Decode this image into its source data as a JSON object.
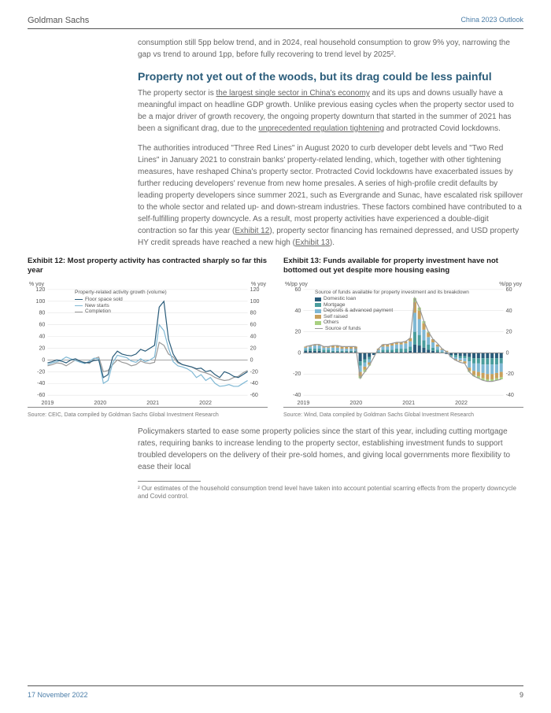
{
  "header": {
    "left": "Goldman Sachs",
    "right": "China 2023 Outlook"
  },
  "para1": "consumption still 5pp below trend, and in 2024, real household consumption to grow 9% yoy, narrowing the gap vs trend to around 1pp, before fully recovering to trend level by 2025².",
  "section_title": "Property not yet out of the woods, but its drag could be less painful",
  "para2a": "The property sector is ",
  "link2a": "the largest single sector in China's economy",
  "para2b": " and its ups and downs usually have a meaningful impact on headline GDP growth. Unlike previous easing cycles when the property sector used to be a major driver of growth recovery, the ongoing property downturn that started in the summer of 2021 has been a significant drag, due to the ",
  "link2b": "unprecedented regulation tightening",
  "para2c": " and protracted Covid lockdowns.",
  "para3a": "The authorities introduced \"Three Red Lines\" in August 2020 to curb developer debt levels and \"Two Red Lines\" in January 2021 to constrain banks' property-related lending, which, together with other tightening measures, have reshaped China's property sector. Protracted Covid lockdowns have exacerbated issues by further reducing developers' revenue from new home presales. A series of high-profile credit defaults by leading property developers since summer 2021, such as Evergrande and Sunac, have escalated risk spillover to the whole sector and related up- and down-stream industries. These factors combined have contributed to a self-fulfilling property downcycle. As a result, most property activities have experienced a double-digit contraction so far this year (",
  "link3a": "Exhibit 12",
  "para3b": "), property sector financing has remained depressed, and USD property HY credit spreads have reached a new high (",
  "link3b": "Exhibit 13",
  "para3c": ").",
  "exhibit12": {
    "title": "Exhibit 12: Most property activity has contracted sharply so far this year",
    "ylabel": "% yoy",
    "legend_title": "Property-related activity growth (volume)",
    "legend": [
      {
        "label": "Floor space sold",
        "color": "#2a5c7a"
      },
      {
        "label": "New starts",
        "color": "#7fb8d4"
      },
      {
        "label": "Completion",
        "color": "#999"
      }
    ],
    "ylim": [
      -60,
      120
    ],
    "ystep": 20,
    "xlabels": [
      "2019",
      "2020",
      "2021",
      "2022"
    ],
    "series": {
      "floor_sold": [
        -5,
        -3,
        0,
        -2,
        -5,
        0,
        2,
        -2,
        -5,
        -4,
        -1,
        0,
        -30,
        -25,
        5,
        15,
        10,
        8,
        7,
        10,
        18,
        15,
        20,
        25,
        90,
        100,
        35,
        10,
        -3,
        -8,
        -10,
        -12,
        -15,
        -14,
        -20,
        -18,
        -25,
        -30,
        -20,
        -23,
        -28,
        -30,
        -25,
        -20
      ],
      "new_starts": [
        -8,
        -5,
        -3,
        0,
        5,
        2,
        -1,
        -4,
        -6,
        -2,
        3,
        2,
        -40,
        -35,
        -5,
        8,
        6,
        4,
        -2,
        -4,
        2,
        -3,
        0,
        5,
        60,
        50,
        20,
        -3,
        -10,
        -12,
        -15,
        -20,
        -30,
        -25,
        -35,
        -30,
        -40,
        -45,
        -44,
        -42,
        -45,
        -45,
        -40,
        -35
      ],
      "completion": [
        -10,
        -8,
        -5,
        -6,
        -10,
        -5,
        0,
        -3,
        -4,
        -6,
        2,
        5,
        -20,
        -18,
        -8,
        0,
        -4,
        -6,
        -10,
        -8,
        -2,
        -5,
        -6,
        -4,
        30,
        25,
        10,
        5,
        -5,
        -8,
        -10,
        -12,
        -16,
        -20,
        -22,
        -25,
        -30,
        -33,
        -35,
        -34,
        -30,
        -28,
        -22,
        -18
      ]
    },
    "source": "Source: CEIC, Data compiled by Goldman Sachs Global Investment Research"
  },
  "exhibit13": {
    "title": "Exhibit 13: Funds available for property investment have not bottomed out yet despite more housing easing",
    "ylabel": "%/pp yoy",
    "legend_title": "Source of funds available for property investment and its breakdown",
    "legend": [
      {
        "label": "Domestic loan",
        "color": "#2a5c7a"
      },
      {
        "label": "Mortgage",
        "color": "#4a9d9d"
      },
      {
        "label": "Deposits & advanced payment",
        "color": "#7fb8d4"
      },
      {
        "label": "Self raised",
        "color": "#c8a05c"
      },
      {
        "label": "Others",
        "color": "#a8d080"
      },
      {
        "label": "Source of funds",
        "color": "#999"
      }
    ],
    "ylim": [
      -40,
      60
    ],
    "ystep": 20,
    "xlabels": [
      "2019",
      "2020",
      "2021",
      "2022"
    ],
    "stacks": [
      {
        "dl": 2,
        "mg": 1,
        "dp": 2,
        "sr": 1,
        "ot": 0
      },
      {
        "dl": 2,
        "mg": 2,
        "dp": 2,
        "sr": 1,
        "ot": 0
      },
      {
        "dl": 2,
        "mg": 2,
        "dp": 3,
        "sr": 1,
        "ot": 0
      },
      {
        "dl": 2,
        "mg": 2,
        "dp": 3,
        "sr": 1,
        "ot": 0
      },
      {
        "dl": 1,
        "mg": 2,
        "dp": 2,
        "sr": 1,
        "ot": 0
      },
      {
        "dl": 1,
        "mg": 2,
        "dp": 2,
        "sr": 1,
        "ot": 0
      },
      {
        "dl": 1,
        "mg": 1,
        "dp": 3,
        "sr": 2,
        "ot": 0
      },
      {
        "dl": 1,
        "mg": 1,
        "dp": 3,
        "sr": 2,
        "ot": 0
      },
      {
        "dl": 1,
        "mg": 1,
        "dp": 2,
        "sr": 2,
        "ot": 0
      },
      {
        "dl": 1,
        "mg": 1,
        "dp": 2,
        "sr": 2,
        "ot": 0
      },
      {
        "dl": 1,
        "mg": 1,
        "dp": 2,
        "sr": 2,
        "ot": 0
      },
      {
        "dl": 1,
        "mg": 1,
        "dp": 2,
        "sr": 2,
        "ot": 0
      },
      {
        "dl": -8,
        "mg": -4,
        "dp": -6,
        "sr": -4,
        "ot": -2
      },
      {
        "dl": -6,
        "mg": -3,
        "dp": -4,
        "sr": -3,
        "ot": -2
      },
      {
        "dl": -4,
        "mg": -2,
        "dp": -3,
        "sr": -2,
        "ot": -1
      },
      {
        "dl": -2,
        "mg": 0,
        "dp": 0,
        "sr": 0,
        "ot": 0
      },
      {
        "dl": 0,
        "mg": 1,
        "dp": 2,
        "sr": 1,
        "ot": 0
      },
      {
        "dl": 1,
        "mg": 2,
        "dp": 3,
        "sr": 2,
        "ot": 0
      },
      {
        "dl": 1,
        "mg": 2,
        "dp": 3,
        "sr": 2,
        "ot": 0
      },
      {
        "dl": 1,
        "mg": 2,
        "dp": 4,
        "sr": 2,
        "ot": 0
      },
      {
        "dl": 1,
        "mg": 3,
        "dp": 4,
        "sr": 2,
        "ot": 0
      },
      {
        "dl": 1,
        "mg": 3,
        "dp": 4,
        "sr": 2,
        "ot": 0
      },
      {
        "dl": 1,
        "mg": 3,
        "dp": 5,
        "sr": 2,
        "ot": 0
      },
      {
        "dl": 2,
        "mg": 4,
        "dp": 5,
        "sr": 3,
        "ot": 0
      },
      {
        "dl": 8,
        "mg": 12,
        "dp": 18,
        "sr": 10,
        "ot": 4
      },
      {
        "dl": 7,
        "mg": 10,
        "dp": 15,
        "sr": 8,
        "ot": 3
      },
      {
        "dl": 5,
        "mg": 7,
        "dp": 10,
        "sr": 6,
        "ot": 2
      },
      {
        "dl": 3,
        "mg": 5,
        "dp": 7,
        "sr": 4,
        "ot": 1
      },
      {
        "dl": 2,
        "mg": 3,
        "dp": 5,
        "sr": 3,
        "ot": 0
      },
      {
        "dl": 1,
        "mg": 2,
        "dp": 3,
        "sr": 2,
        "ot": 0
      },
      {
        "dl": 0,
        "mg": 1,
        "dp": 2,
        "sr": 1,
        "ot": 0
      },
      {
        "dl": -1,
        "mg": 0,
        "dp": 1,
        "sr": 1,
        "ot": 0
      },
      {
        "dl": -2,
        "mg": -1,
        "dp": -1,
        "sr": 0,
        "ot": 0
      },
      {
        "dl": -2,
        "mg": -2,
        "dp": -2,
        "sr": -1,
        "ot": 0
      },
      {
        "dl": -3,
        "mg": -2,
        "dp": -2,
        "sr": -1,
        "ot": 0
      },
      {
        "dl": -3,
        "mg": -2,
        "dp": -3,
        "sr": -2,
        "ot": 0
      },
      {
        "dl": -4,
        "mg": -4,
        "dp": -6,
        "sr": -3,
        "ot": -1
      },
      {
        "dl": -5,
        "mg": -5,
        "dp": -7,
        "sr": -4,
        "ot": -1
      },
      {
        "dl": -5,
        "mg": -5,
        "dp": -8,
        "sr": -4,
        "ot": -2
      },
      {
        "dl": -5,
        "mg": -6,
        "dp": -8,
        "sr": -5,
        "ot": -2
      },
      {
        "dl": -5,
        "mg": -6,
        "dp": -9,
        "sr": -5,
        "ot": -2
      },
      {
        "dl": -5,
        "mg": -6,
        "dp": -9,
        "sr": -5,
        "ot": -2
      },
      {
        "dl": -5,
        "mg": -6,
        "dp": -8,
        "sr": -5,
        "ot": -2
      },
      {
        "dl": -5,
        "mg": -5,
        "dp": -8,
        "sr": -5,
        "ot": -2
      }
    ],
    "line": [
      6,
      7,
      8,
      8,
      6,
      6,
      7,
      7,
      6,
      6,
      6,
      6,
      -24,
      -18,
      -12,
      -4,
      4,
      8,
      8,
      9,
      10,
      10,
      11,
      14,
      52,
      43,
      30,
      20,
      13,
      9,
      4,
      1,
      -4,
      -7,
      -9,
      -10,
      -18,
      -22,
      -24,
      -26,
      -27,
      -27,
      -26,
      -25
    ],
    "source": "Source: Wind, Data compiled by Goldman Sachs Global Investment Research"
  },
  "para4": "Policymakers started to ease some property policies since the start of this year, including cutting mortgage rates, requiring banks to increase lending to the property sector, establishing investment funds to support troubled developers on the delivery of their pre-sold homes, and giving local governments more flexibility to ease their local",
  "footnote": "²   Our estimates of the household consumption trend level have taken into account potential scarring effects from the property downcycle and Covid control.",
  "footer": {
    "date": "17 November 2022",
    "page": "9"
  }
}
